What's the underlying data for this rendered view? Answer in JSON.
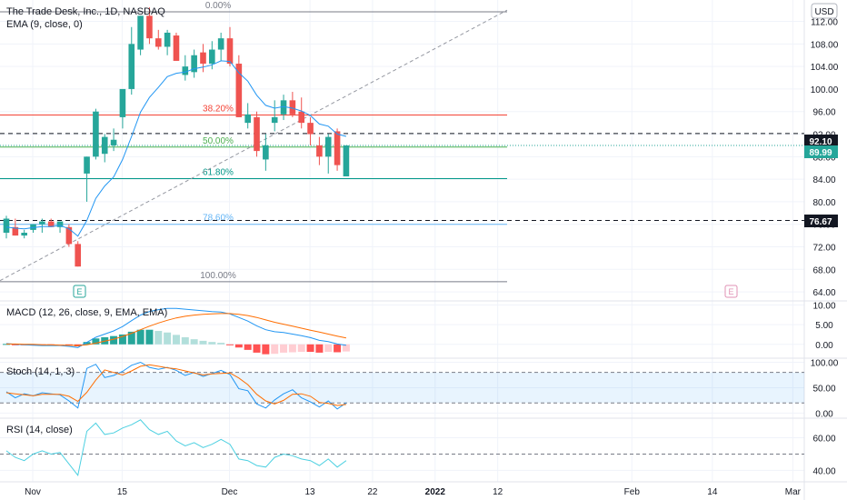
{
  "header": {
    "title": "The Trade Desk, Inc., 1D, NASDAQ",
    "ema_label": "EMA (9, close, 0)",
    "currency": "USD"
  },
  "indicators": {
    "macd_label": "MACD (12, 26, close, 9, EMA, EMA)",
    "stoch_label": "Stoch (14, 1, 3)",
    "rsi_label": "RSI (14, close)"
  },
  "colors": {
    "up": "#26a69a",
    "down": "#ef5350",
    "ema": "#2196f3",
    "macd_signal": "#ff6d00",
    "fib_0": "#787b86",
    "fib_382": "#f44336",
    "fib_50": "#4caf50",
    "fib_618": "#009688",
    "fib_786": "#64b5f6",
    "fib_100": "#787b86",
    "rsi": "#4dd0e1"
  },
  "price_tags": {
    "level_1": "92.10",
    "current": "89.99",
    "level_2": "76.67"
  },
  "earnings_markers": [
    "E",
    "E"
  ],
  "chart_data": {
    "type": "candlestick",
    "main": {
      "y_ticks": [
        "112.00",
        "108.00",
        "104.00",
        "100.00",
        "96.00",
        "92.00",
        "88.00",
        "84.00",
        "80.00",
        "76.00",
        "72.00",
        "68.00",
        "64.00"
      ],
      "ylim": [
        62.4,
        115.8
      ],
      "candles": [
        {
          "o": 74.5,
          "h": 77.5,
          "l": 73.5,
          "c": 77.0
        },
        {
          "o": 75.5,
          "h": 77.0,
          "l": 74.0,
          "c": 74.0
        },
        {
          "o": 74.0,
          "h": 75.0,
          "l": 73.5,
          "c": 74.5
        },
        {
          "o": 75.0,
          "h": 76.0,
          "l": 74.5,
          "c": 76.0
        },
        {
          "o": 76.0,
          "h": 77.0,
          "l": 74.5,
          "c": 76.5
        },
        {
          "o": 76.5,
          "h": 77.0,
          "l": 75.5,
          "c": 75.5
        },
        {
          "o": 75.5,
          "h": 76.5,
          "l": 74.5,
          "c": 76.5
        },
        {
          "o": 75.5,
          "h": 76.0,
          "l": 72.0,
          "c": 72.5
        },
        {
          "o": 72.5,
          "h": 73.0,
          "l": 68.5,
          "c": 68.5
        },
        {
          "o": 85.0,
          "h": 88.0,
          "l": 80.0,
          "c": 88.0
        },
        {
          "o": 88.0,
          "h": 96.5,
          "l": 87.5,
          "c": 96.0
        },
        {
          "o": 88.5,
          "h": 92.0,
          "l": 87.0,
          "c": 91.5
        },
        {
          "o": 90.0,
          "h": 93.0,
          "l": 89.0,
          "c": 91.0
        },
        {
          "o": 95.0,
          "h": 100.0,
          "l": 93.0,
          "c": 100.0
        },
        {
          "o": 100.0,
          "h": 111.0,
          "l": 99.0,
          "c": 108.0
        },
        {
          "o": 107.0,
          "h": 113.0,
          "l": 106.0,
          "c": 113.0
        },
        {
          "o": 113.0,
          "h": 114.5,
          "l": 108.0,
          "c": 109.0
        },
        {
          "o": 109.0,
          "h": 110.5,
          "l": 107.0,
          "c": 107.5
        },
        {
          "o": 107.5,
          "h": 110.5,
          "l": 106.0,
          "c": 110.0
        },
        {
          "o": 109.5,
          "h": 110.0,
          "l": 105.0,
          "c": 105.0
        },
        {
          "o": 102.5,
          "h": 106.0,
          "l": 101.5,
          "c": 104.0
        },
        {
          "o": 103.0,
          "h": 107.0,
          "l": 102.0,
          "c": 106.0
        },
        {
          "o": 106.5,
          "h": 108.0,
          "l": 103.0,
          "c": 104.5
        },
        {
          "o": 104.5,
          "h": 108.5,
          "l": 103.5,
          "c": 107.0
        },
        {
          "o": 107.0,
          "h": 110.0,
          "l": 105.0,
          "c": 109.0
        },
        {
          "o": 109.0,
          "h": 111.0,
          "l": 104.0,
          "c": 104.5
        },
        {
          "o": 104.5,
          "h": 106.0,
          "l": 95.0,
          "c": 95.0
        },
        {
          "o": 94.0,
          "h": 97.5,
          "l": 93.0,
          "c": 95.5
        },
        {
          "o": 95.0,
          "h": 96.0,
          "l": 88.0,
          "c": 89.0
        },
        {
          "o": 87.5,
          "h": 92.0,
          "l": 85.5,
          "c": 90.0
        },
        {
          "o": 94.0,
          "h": 98.0,
          "l": 92.5,
          "c": 95.0
        },
        {
          "o": 95.5,
          "h": 99.0,
          "l": 94.5,
          "c": 98.0
        },
        {
          "o": 98.0,
          "h": 99.5,
          "l": 95.0,
          "c": 95.5
        },
        {
          "o": 96.0,
          "h": 98.5,
          "l": 93.0,
          "c": 94.0
        },
        {
          "o": 94.0,
          "h": 95.0,
          "l": 90.0,
          "c": 92.0
        },
        {
          "o": 90.0,
          "h": 91.5,
          "l": 86.5,
          "c": 88.0
        },
        {
          "o": 88.0,
          "h": 92.0,
          "l": 85.0,
          "c": 91.5
        },
        {
          "o": 92.5,
          "h": 93.0,
          "l": 85.5,
          "c": 86.5
        },
        {
          "o": 84.5,
          "h": 90.0,
          "l": 84.5,
          "c": 89.99
        }
      ],
      "ema": [
        75.5,
        75.3,
        75.2,
        75.4,
        75.6,
        75.6,
        75.8,
        75.2,
        73.9,
        76.7,
        80.6,
        82.8,
        84.4,
        87.5,
        91.6,
        95.9,
        98.5,
        100.3,
        102.2,
        102.8,
        103.0,
        103.6,
        103.9,
        104.3,
        105.0,
        104.9,
        102.9,
        101.4,
        98.9,
        97.1,
        96.6,
        96.9,
        96.6,
        96.1,
        95.3,
        93.8,
        93.4,
        92.0,
        91.6
      ],
      "fibonacci": [
        {
          "label": "0.00%",
          "value": 113.7
        },
        {
          "label": "38.20%",
          "value": 95.4
        },
        {
          "label": "50.00%",
          "value": 89.7
        },
        {
          "label": "61.80%",
          "value": 84.1
        },
        {
          "label": "78.60%",
          "value": 76.0
        },
        {
          "label": "100.00%",
          "value": 65.8
        }
      ],
      "horizontal_lines": [
        92.1,
        76.67
      ],
      "trendline": {
        "from": 66.0,
        "to": 114.0
      }
    },
    "macd": {
      "y_ticks": [
        "10.00",
        "5.00",
        "0.00"
      ],
      "ylim": [
        -3.5,
        11.0
      ],
      "macd": [
        0.2,
        0.0,
        -0.1,
        -0.2,
        -0.3,
        -0.3,
        -0.3,
        -0.5,
        -0.8,
        0.5,
        1.8,
        2.6,
        3.4,
        4.5,
        6.0,
        7.4,
        8.3,
        8.8,
        9.1,
        9.1,
        8.9,
        8.7,
        8.5,
        8.3,
        8.2,
        7.7,
        6.8,
        5.9,
        4.7,
        3.7,
        3.2,
        3.0,
        2.6,
        2.2,
        1.7,
        1.0,
        0.7,
        0.1,
        -0.2
      ],
      "signal": [
        0.1,
        0.1,
        0.0,
        0.0,
        -0.1,
        -0.1,
        -0.2,
        -0.2,
        -0.3,
        -0.1,
        0.3,
        0.8,
        1.3,
        2.0,
        2.8,
        3.7,
        4.6,
        5.4,
        6.1,
        6.7,
        7.1,
        7.4,
        7.6,
        7.7,
        7.8,
        7.8,
        7.6,
        7.3,
        6.8,
        6.2,
        5.6,
        5.1,
        4.6,
        4.1,
        3.6,
        3.1,
        2.6,
        2.1,
        1.6
      ],
      "histogram": [
        0.1,
        -0.1,
        -0.1,
        -0.2,
        -0.2,
        -0.2,
        -0.1,
        -0.3,
        -0.5,
        0.6,
        1.5,
        1.8,
        2.1,
        2.5,
        3.2,
        3.7,
        3.7,
        3.4,
        3.0,
        2.4,
        1.8,
        1.3,
        0.9,
        0.6,
        0.4,
        -0.1,
        -0.8,
        -1.4,
        -2.1,
        -2.5,
        -2.4,
        -2.1,
        -2.0,
        -1.9,
        -1.9,
        -2.1,
        -1.9,
        -2.0,
        -1.8
      ]
    },
    "stoch": {
      "y_ticks": [
        "100.00",
        "50.00",
        "0.00"
      ],
      "ylim": [
        -10,
        108
      ],
      "band": [
        20,
        80
      ],
      "k": [
        42,
        30,
        38,
        34,
        40,
        38,
        36,
        24,
        10,
        88,
        96,
        70,
        74,
        82,
        94,
        100,
        90,
        86,
        90,
        84,
        74,
        80,
        72,
        78,
        84,
        76,
        48,
        44,
        18,
        10,
        26,
        38,
        46,
        30,
        22,
        12,
        24,
        8,
        20
      ],
      "d": [
        40,
        38,
        36,
        34,
        37,
        37,
        37,
        33,
        23,
        41,
        65,
        85,
        80,
        75,
        83,
        92,
        95,
        92,
        89,
        87,
        83,
        79,
        75,
        77,
        78,
        79,
        69,
        56,
        37,
        24,
        18,
        25,
        37,
        38,
        33,
        21,
        19,
        15,
        17
      ]
    },
    "rsi": {
      "y_ticks": [
        "60.00",
        "40.00"
      ],
      "ylim": [
        33,
        72
      ],
      "band": [
        50
      ],
      "values": [
        52,
        48,
        46,
        50,
        52,
        50,
        51,
        44,
        37,
        64,
        69,
        62,
        63,
        66,
        68,
        71,
        65,
        62,
        64,
        58,
        55,
        57,
        54,
        56,
        59,
        56,
        47,
        46,
        43,
        42,
        48,
        50,
        49,
        47,
        46,
        43,
        47,
        42,
        46
      ]
    },
    "x_ticks": [
      {
        "label": "Nov",
        "day": 0
      },
      {
        "label": "15",
        "day": 10
      },
      {
        "label": "Dec",
        "day": 22
      },
      {
        "label": "13",
        "day": 31
      },
      {
        "label": "22",
        "day": 38
      },
      {
        "label": "2022",
        "day": 45
      },
      {
        "label": "12",
        "day": 52
      },
      {
        "label": "Feb",
        "day": 67
      },
      {
        "label": "14",
        "day": 76
      },
      {
        "label": "Mar",
        "day": 85
      }
    ]
  }
}
